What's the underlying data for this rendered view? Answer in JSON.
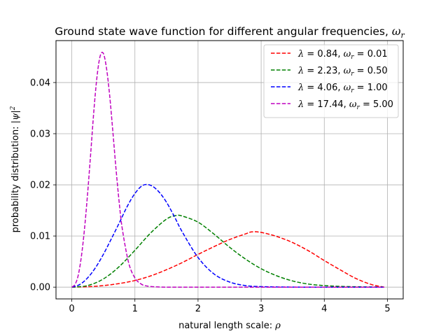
{
  "chart_data": {
    "type": "line",
    "title": "Ground state wave function for different angular frequencies, ω_r",
    "title_text": "Ground state wave function for different angular frequencies, ",
    "title_symbol": "ω",
    "title_subscript": "r",
    "xlabel": "natural length scale: ρ",
    "xlabel_text": "natural length scale: ",
    "xlabel_symbol": "ρ",
    "ylabel": "probability distribution: |ψ|²",
    "ylabel_text": "probability distribution: ",
    "ylabel_symbol": "|ψ|",
    "ylabel_superscript": "2",
    "xlim": [
      -0.25,
      5.25
    ],
    "ylim": [
      -0.0023,
      0.0482
    ],
    "xticks": [
      0,
      1,
      2,
      3,
      4,
      5
    ],
    "xtick_labels": [
      "0",
      "1",
      "2",
      "3",
      "4",
      "5"
    ],
    "yticks": [
      0.0,
      0.01,
      0.02,
      0.03,
      0.04
    ],
    "ytick_labels": [
      "0.00",
      "0.01",
      "0.02",
      "0.03",
      "0.04"
    ],
    "grid": true,
    "legend_position": "top-right",
    "line_style": "dashed",
    "series": [
      {
        "name": "λ = 0.84, ω_r = 0.01",
        "lambda": "0.84",
        "omega": "0.01",
        "color": "#ff0000",
        "x": [
          0,
          0.25,
          0.5,
          0.75,
          1.0,
          1.25,
          1.5,
          1.75,
          2.0,
          2.25,
          2.5,
          2.75,
          2.85,
          3.0,
          3.25,
          3.5,
          3.75,
          4.0,
          4.25,
          4.5,
          4.75,
          4.95
        ],
        "y": [
          0,
          8e-05,
          0.0003,
          0.0007,
          0.0013,
          0.0022,
          0.0034,
          0.0048,
          0.0064,
          0.0079,
          0.0093,
          0.0104,
          0.0108,
          0.0107,
          0.0099,
          0.0087,
          0.0071,
          0.0052,
          0.0034,
          0.0017,
          0.0005,
          0.0
        ]
      },
      {
        "name": "λ = 2.23, ω_r = 0.50",
        "lambda": "2.23",
        "omega": "0.50",
        "color": "#008000",
        "x": [
          0,
          0.25,
          0.5,
          0.75,
          1.0,
          1.25,
          1.5,
          1.65,
          1.75,
          2.0,
          2.25,
          2.5,
          2.75,
          3.0,
          3.25,
          3.5,
          3.75,
          4.0,
          4.25,
          4.5,
          4.75,
          4.95
        ],
        "y": [
          0,
          0.0003,
          0.0016,
          0.004,
          0.0072,
          0.0106,
          0.0133,
          0.014,
          0.0139,
          0.0127,
          0.0104,
          0.0078,
          0.0055,
          0.0036,
          0.0022,
          0.0012,
          0.0006,
          0.0003,
          0.00015,
          7e-05,
          3e-05,
          0.0
        ]
      },
      {
        "name": "λ = 4.06, ω_r = 1.00",
        "lambda": "4.06",
        "omega": "1.00",
        "color": "#0000ff",
        "x": [
          0,
          0.125,
          0.25,
          0.375,
          0.5,
          0.625,
          0.75,
          0.875,
          1.0,
          1.125,
          1.25,
          1.375,
          1.5,
          1.625,
          1.75,
          2.0,
          2.25,
          2.5,
          2.75,
          3.0,
          3.5,
          4.0,
          4.95
        ],
        "y": [
          0,
          0.0005,
          0.0018,
          0.0038,
          0.0064,
          0.0094,
          0.0125,
          0.0157,
          0.0183,
          0.0199,
          0.0199,
          0.0187,
          0.0166,
          0.0138,
          0.0108,
          0.0058,
          0.0026,
          0.001,
          0.0003,
          0.0001,
          1e-05,
          0.0,
          0.0
        ]
      },
      {
        "name": "λ = 17.44, ω_r = 5.00",
        "lambda": "17.44",
        "omega": "5.00",
        "color": "#bf00bf",
        "x": [
          0,
          0.05,
          0.1,
          0.15,
          0.2,
          0.25,
          0.3,
          0.35,
          0.4,
          0.45,
          0.5,
          0.55,
          0.6,
          0.65,
          0.7,
          0.75,
          0.8,
          0.9,
          1.0,
          1.1,
          1.2,
          1.4,
          1.6,
          2.0,
          3.0,
          4.0,
          4.95
        ],
        "y": [
          0,
          0.0005,
          0.0022,
          0.0058,
          0.0112,
          0.0182,
          0.0262,
          0.0345,
          0.0412,
          0.0452,
          0.0457,
          0.0428,
          0.0375,
          0.0305,
          0.0232,
          0.0167,
          0.0114,
          0.0048,
          0.0018,
          0.0006,
          0.0002,
          2e-05,
          0.0,
          0.0,
          0.0,
          0.0,
          0.0
        ]
      }
    ]
  }
}
